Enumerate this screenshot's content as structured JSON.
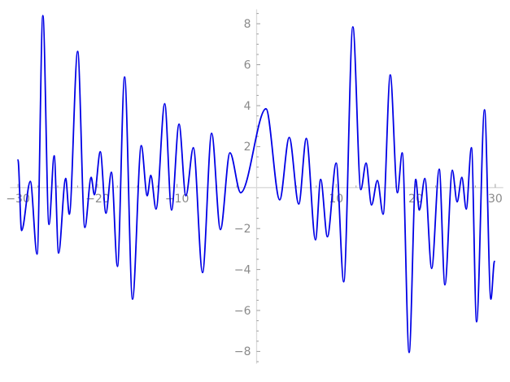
{
  "window": {
    "background_color": "#ffffff"
  },
  "chart_data": {
    "type": "line",
    "title": "",
    "xlabel": "",
    "ylabel": "",
    "grid": false,
    "legend": false,
    "line_color": "#0000e6",
    "axis_color": "#d9d9d9",
    "tick_color": "#9e9e9e",
    "label_color": "#8a8a8a",
    "x_axis": {
      "min": -31,
      "max": 31,
      "minor_step": 2.5,
      "major_ticks": [
        {
          "v": -30,
          "label": "−30"
        },
        {
          "v": -20,
          "label": "−20"
        },
        {
          "v": -10,
          "label": "−10"
        },
        {
          "v": 10,
          "label": "10"
        },
        {
          "v": 20,
          "label": "20"
        },
        {
          "v": 30,
          "label": "30"
        }
      ]
    },
    "y_axis": {
      "min": -8.6,
      "max": 8.7,
      "minor_step": 0.5,
      "major_ticks": [
        {
          "v": -8,
          "label": "−8"
        },
        {
          "v": -6,
          "label": "−6"
        },
        {
          "v": -4,
          "label": "−4"
        },
        {
          "v": -2,
          "label": "−2"
        },
        {
          "v": 2,
          "label": "2"
        },
        {
          "v": 4,
          "label": "4"
        },
        {
          "v": 6,
          "label": "6"
        },
        {
          "v": 8,
          "label": "8"
        }
      ]
    },
    "points": [
      [
        -30.0,
        1.35
      ],
      [
        -29.55,
        -2.1
      ],
      [
        -28.45,
        0.3
      ],
      [
        -27.6,
        -3.25
      ],
      [
        -26.87,
        8.4
      ],
      [
        -26.1,
        -1.8
      ],
      [
        -25.45,
        1.55
      ],
      [
        -24.9,
        -3.2
      ],
      [
        -24.0,
        0.45
      ],
      [
        -23.55,
        -1.3
      ],
      [
        -22.5,
        6.65
      ],
      [
        -21.6,
        -1.95
      ],
      [
        -20.8,
        0.5
      ],
      [
        -20.4,
        -0.35
      ],
      [
        -19.65,
        1.75
      ],
      [
        -18.95,
        -1.25
      ],
      [
        -18.25,
        0.75
      ],
      [
        -17.5,
        -3.85
      ],
      [
        -16.6,
        5.4
      ],
      [
        -15.6,
        -5.45
      ],
      [
        -14.5,
        2.05
      ],
      [
        -13.75,
        -0.4
      ],
      [
        -13.3,
        0.6
      ],
      [
        -12.65,
        -1.05
      ],
      [
        -11.55,
        4.1
      ],
      [
        -10.7,
        -1.1
      ],
      [
        -9.75,
        3.1
      ],
      [
        -8.9,
        -0.4
      ],
      [
        -7.95,
        1.95
      ],
      [
        -6.8,
        -4.15
      ],
      [
        -5.65,
        2.65
      ],
      [
        -4.55,
        -2.05
      ],
      [
        -3.35,
        1.7
      ],
      [
        -2.0,
        -0.25
      ],
      [
        1.18,
        3.85
      ],
      [
        2.9,
        -0.6
      ],
      [
        4.1,
        2.45
      ],
      [
        5.3,
        -0.8
      ],
      [
        6.25,
        2.4
      ],
      [
        7.4,
        -2.55
      ],
      [
        8.05,
        0.4
      ],
      [
        8.9,
        -2.4
      ],
      [
        10.0,
        1.2
      ],
      [
        10.95,
        -4.6
      ],
      [
        12.1,
        7.85
      ],
      [
        13.1,
        -0.1
      ],
      [
        13.75,
        1.2
      ],
      [
        14.45,
        -0.85
      ],
      [
        15.18,
        0.35
      ],
      [
        15.9,
        -1.3
      ],
      [
        16.8,
        5.5
      ],
      [
        17.7,
        -0.25
      ],
      [
        18.3,
        1.7
      ],
      [
        19.17,
        -8.05
      ],
      [
        20.0,
        0.4
      ],
      [
        20.45,
        -1.1
      ],
      [
        21.15,
        0.45
      ],
      [
        22.0,
        -3.95
      ],
      [
        22.95,
        0.9
      ],
      [
        23.67,
        -4.75
      ],
      [
        24.6,
        0.85
      ],
      [
        25.2,
        -0.7
      ],
      [
        25.8,
        0.5
      ],
      [
        26.35,
        -1.05
      ],
      [
        27.0,
        1.95
      ],
      [
        27.65,
        -6.55
      ],
      [
        28.65,
        3.8
      ],
      [
        29.45,
        -5.45
      ],
      [
        29.9,
        -3.6
      ]
    ]
  }
}
